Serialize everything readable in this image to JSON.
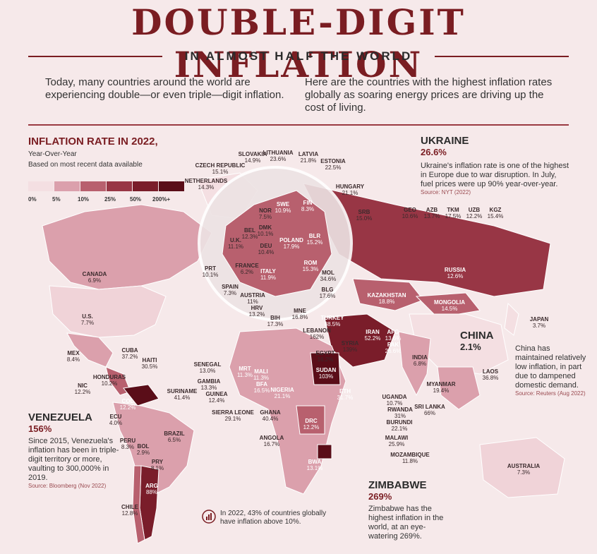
{
  "header": {
    "title": "DOUBLE-DIGIT INFLATION",
    "subtitle": "IN ALMOST HALF THE WORLD",
    "intro_left": "Today, many countries around the world are experiencing double—or even triple—digit inflation.",
    "intro_right": "Here are the countries with the highest inflation rates globally as soaring energy prices are driving up the cost of living."
  },
  "legend": {
    "title": "INFLATION RATE IN 2022,",
    "line1": "Year-Over-Year",
    "line2": "Based on most recent data available",
    "colors": [
      "#f4dfe2",
      "#dba0ac",
      "#b8606e",
      "#983645",
      "#7a1d2a",
      "#5a0d18"
    ],
    "ticks": [
      "0%",
      "5%",
      "10%",
      "25%",
      "50%",
      "200%+"
    ]
  },
  "countries": [
    {
      "name": "SLOVAKIA",
      "value": "14.9%"
    },
    {
      "name": "LITHUANIA",
      "value": "23.6%"
    },
    {
      "name": "LATVIA",
      "value": "21.8%"
    },
    {
      "name": "ESTONIA",
      "value": "22.5%"
    },
    {
      "name": "CZECH REPUBLIC",
      "value": "15.1%"
    },
    {
      "name": "NETHERLANDS",
      "value": "14.3%"
    },
    {
      "name": "HUNGARY",
      "value": "21.1%"
    },
    {
      "name": "NOR",
      "value": "7.5%"
    },
    {
      "name": "SWE",
      "value": "10.9%"
    },
    {
      "name": "FIN",
      "value": "8.3%"
    },
    {
      "name": "DMK",
      "value": "10.1%"
    },
    {
      "name": "BEL",
      "value": "12.3%"
    },
    {
      "name": "U.K.",
      "value": "11.1%"
    },
    {
      "name": "DEU",
      "value": "10.4%"
    },
    {
      "name": "POLAND",
      "value": "17.9%"
    },
    {
      "name": "BLR",
      "value": "15.2%"
    },
    {
      "name": "SRB",
      "value": "15.0%"
    },
    {
      "name": "ROM",
      "value": "15.3%"
    },
    {
      "name": "FRANCE",
      "value": "6.2%"
    },
    {
      "name": "MOL",
      "value": "34.6%"
    },
    {
      "name": "ITALY",
      "value": "11.9%"
    },
    {
      "name": "PRT",
      "value": "10.1%"
    },
    {
      "name": "SPAIN",
      "value": "7.3%"
    },
    {
      "name": "AUSTRIA",
      "value": "11%"
    },
    {
      "name": "BLG",
      "value": "17.6%"
    },
    {
      "name": "HRV",
      "value": "13.2%"
    },
    {
      "name": "BIH",
      "value": "17.3%"
    },
    {
      "name": "MNE",
      "value": "16.8%"
    },
    {
      "name": "GEO",
      "value": "10.6%"
    },
    {
      "name": "AZB",
      "value": "13.7%"
    },
    {
      "name": "TKM",
      "value": "17.5%"
    },
    {
      "name": "UZB",
      "value": "12.2%"
    },
    {
      "name": "KGZ",
      "value": "15.4%"
    },
    {
      "name": "CANADA",
      "value": "6.9%"
    },
    {
      "name": "RUSSIA",
      "value": "12.6%"
    },
    {
      "name": "KAZAKHSTAN",
      "value": "18.8%"
    },
    {
      "name": "MONGOLIA",
      "value": "14.5%"
    },
    {
      "name": "JAPAN",
      "value": "3.7%"
    },
    {
      "name": "U.S.",
      "value": "7.7%"
    },
    {
      "name": "TURKEY",
      "value": "88.5%"
    },
    {
      "name": "LEBANON",
      "value": "162%"
    },
    {
      "name": "IRAN",
      "value": "52.2%"
    },
    {
      "name": "SYRIA",
      "value": "139%"
    },
    {
      "name": "AFG",
      "value": "13.6%"
    },
    {
      "name": "PAK",
      "value": "26.6%"
    },
    {
      "name": "MEX",
      "value": "8.4%"
    },
    {
      "name": "CUBA",
      "value": "37.2%"
    },
    {
      "name": "HAITI",
      "value": "30.5%"
    },
    {
      "name": "EGYPT",
      "value": "16.2%"
    },
    {
      "name": "INDIA",
      "value": "6.8%"
    },
    {
      "name": "SENEGAL",
      "value": "13.0%"
    },
    {
      "name": "MRT",
      "value": "11.3%"
    },
    {
      "name": "MALI",
      "value": "11.3%"
    },
    {
      "name": "GAMBIA",
      "value": "13.3%"
    },
    {
      "name": "BFA",
      "value": "16.5%"
    },
    {
      "name": "GUINEA",
      "value": "12.4%"
    },
    {
      "name": "NIGERIA",
      "value": "21.1%"
    },
    {
      "name": "SUDAN",
      "value": "103%"
    },
    {
      "name": "LAOS",
      "value": "36.8%"
    },
    {
      "name": "HONDURAS",
      "value": "10.2%"
    },
    {
      "name": "NIC",
      "value": "12.2%"
    },
    {
      "name": "SURINAME",
      "value": "41.4%"
    },
    {
      "name": "SIERRA LEONE",
      "value": "29.1%"
    },
    {
      "name": "GHANA",
      "value": "40.4%"
    },
    {
      "name": "ETH",
      "value": "31.7%"
    },
    {
      "name": "MYANMAR",
      "value": "19.4%"
    },
    {
      "name": "COL",
      "value": "12.2%"
    },
    {
      "name": "UGANDA",
      "value": "10.7%"
    },
    {
      "name": "ECU",
      "value": "4.0%"
    },
    {
      "name": "RWANDA",
      "value": "31%"
    },
    {
      "name": "SRI LANKA",
      "value": "66%"
    },
    {
      "name": "DRC",
      "value": "12.2%"
    },
    {
      "name": "BURUNDI",
      "value": "22.1%"
    },
    {
      "name": "BRAZIL",
      "value": "6.5%"
    },
    {
      "name": "PERU",
      "value": "8.3%"
    },
    {
      "name": "ANGOLA",
      "value": "16.7%"
    },
    {
      "name": "MALAWI",
      "value": "25.9%"
    },
    {
      "name": "BOL",
      "value": "2.9%"
    },
    {
      "name": "MOZAMBIQUE",
      "value": "11.8%"
    },
    {
      "name": "PRY",
      "value": "8.1%"
    },
    {
      "name": "BWA",
      "value": "13.1%"
    },
    {
      "name": "AUSTRALIA",
      "value": "7.3%"
    },
    {
      "name": "ARG",
      "value": "88%"
    },
    {
      "name": "CHILE",
      "value": "12.8%"
    }
  ],
  "callouts": {
    "ukraine": {
      "name": "UKRAINE",
      "value": "26.6%",
      "text": "Ukraine's inflation rate is one of the highest in Europe due to war disruption. In July, fuel prices were up 90% year-over-year.",
      "source": "Source: NYT (2022)"
    },
    "china": {
      "name": "CHINA",
      "value": "2.1%",
      "text": "China has maintained relatively low inflation, in part due to dampened domestic demand.",
      "source": "Source: Reuters (Aug 2022)"
    },
    "venezuela": {
      "name": "VENEZUELA",
      "value": "156%",
      "text": "Since 2015, Venezuela's inflation has been in triple-digit territory or more, vaulting to 300,000% in 2019.",
      "source": "Source: Bloomberg (Nov 2022)"
    },
    "zimbabwe": {
      "name": "ZIMBABWE",
      "value": "269%",
      "text": "Zimbabwe has the highest inflation in the world, at an eye-watering 269%."
    }
  },
  "footnote": "In 2022, 43% of countries globally have inflation above 10%."
}
